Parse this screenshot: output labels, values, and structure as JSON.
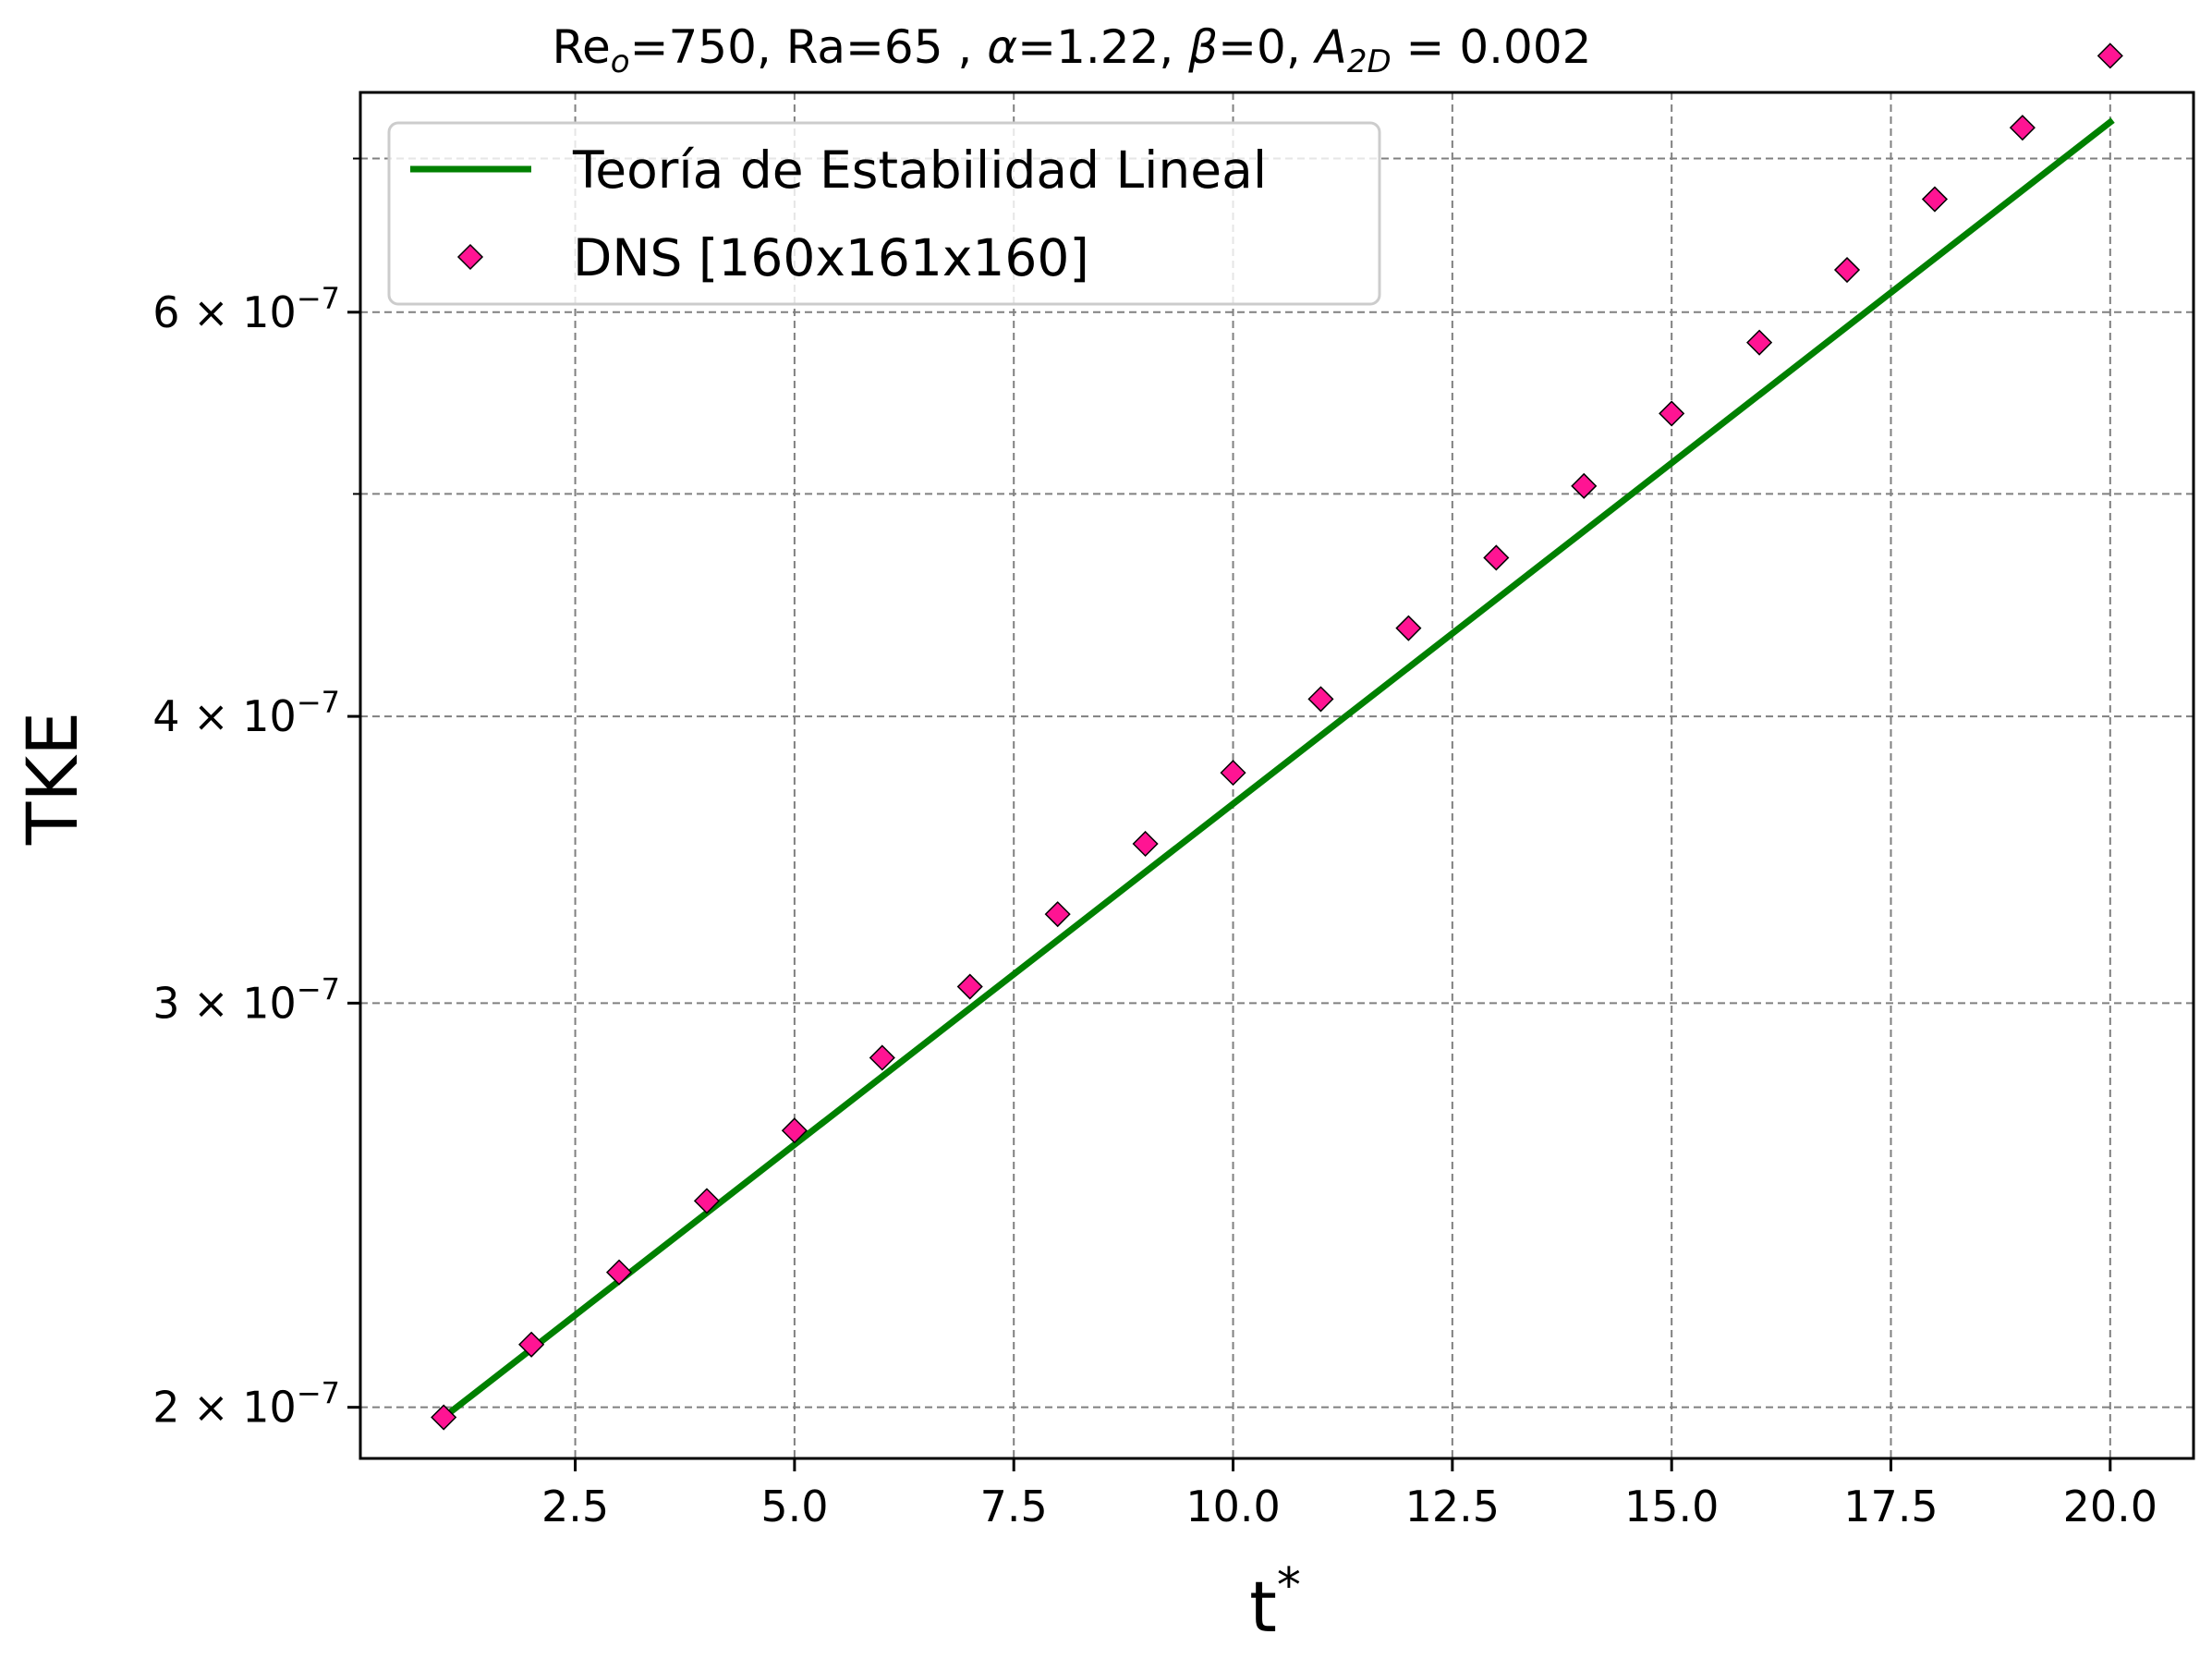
{
  "chart_data": {
    "type": "line",
    "title": {
      "prefix": "Re",
      "prefix_sub": "o",
      "mid": "=750, Ra=65 , ",
      "alpha_sym": "α",
      "alpha_val": "=1.22, ",
      "beta_sym": "β",
      "beta_val": "=0, ",
      "amp_sym": "A",
      "amp_sub": "2D",
      "amp_val": " = 0.002"
    },
    "xlabel": "t",
    "xlabel_sup": "*",
    "ylabel": "TKE",
    "x_scale": "linear",
    "y_scale": "log",
    "xlim": [
      0.05,
      20.95
    ],
    "ylim": [
      1.9e-07,
      7.48e-07
    ],
    "x_ticks": [
      {
        "value": 2.5,
        "label": "2.5"
      },
      {
        "value": 5.0,
        "label": "5.0"
      },
      {
        "value": 7.5,
        "label": "7.5"
      },
      {
        "value": 10.0,
        "label": "10.0"
      },
      {
        "value": 12.5,
        "label": "12.5"
      },
      {
        "value": 15.0,
        "label": "15.0"
      },
      {
        "value": 17.5,
        "label": "17.5"
      },
      {
        "value": 20.0,
        "label": "20.0"
      }
    ],
    "y_major_ticks": [
      {
        "value": 2e-07,
        "mantissa": "2",
        "base": "10",
        "exponent": "−7"
      },
      {
        "value": 3e-07,
        "mantissa": "3",
        "base": "10",
        "exponent": "−7"
      },
      {
        "value": 4e-07,
        "mantissa": "4",
        "base": "10",
        "exponent": "−7"
      },
      {
        "value": 6e-07,
        "mantissa": "6",
        "base": "10",
        "exponent": "−7"
      }
    ],
    "y_minor_ticks": [
      5e-07,
      7e-07
    ],
    "grid": true,
    "legend_position": "top-left",
    "series": [
      {
        "name": "Teoría de Estabilidad Lineal",
        "type": "line",
        "color": "#008000",
        "x_start": 1,
        "x_end": 20,
        "y_start": 1.98e-07,
        "y_end": 7.26e-07
      },
      {
        "name": "DNS [160x161x160]",
        "type": "scatter",
        "marker": "diamond",
        "color": "#ff1493",
        "edge_color": "#000000",
        "x": [
          1,
          2,
          3,
          4,
          5,
          6,
          7,
          8,
          9,
          10,
          11,
          12,
          13,
          14,
          15,
          16,
          17,
          18,
          19,
          20
        ],
        "y": [
          1.98e-07,
          2.13e-07,
          2.29e-07,
          2.46e-07,
          2.64e-07,
          2.84e-07,
          3.05e-07,
          3.28e-07,
          3.52e-07,
          3.78e-07,
          4.07e-07,
          4.37e-07,
          4.69e-07,
          5.04e-07,
          5.42e-07,
          5.82e-07,
          6.26e-07,
          6.72e-07,
          7.22e-07,
          7.76e-07
        ]
      }
    ]
  }
}
